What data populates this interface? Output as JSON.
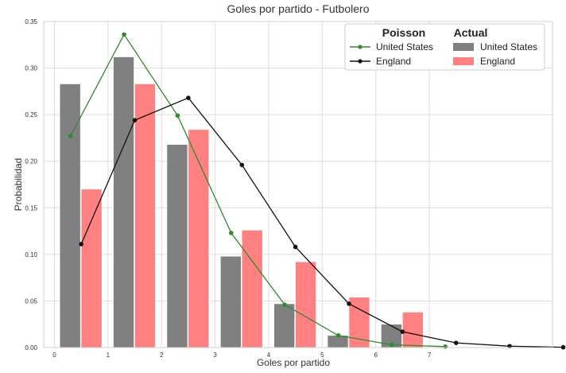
{
  "chart_data": {
    "type": "bar",
    "title": "Goles por partido - Futbolero",
    "xlabel": "Goles por partido",
    "ylabel": "Probabilidad",
    "x_ticks": [
      "0",
      "1",
      "2",
      "3",
      "4",
      "5",
      "6",
      "7"
    ],
    "y_ticks": [
      "0.00",
      "0.05",
      "0.10",
      "0.15",
      "0.20",
      "0.25",
      "0.30",
      "0.35"
    ],
    "xlim": [
      -0.2,
      9.3
    ],
    "ylim": [
      0,
      0.35
    ],
    "grid": true,
    "legend_position": "top-right",
    "bar_series": [
      {
        "name": "United States",
        "color": "#808080",
        "x": [
          0,
          1,
          2,
          3,
          4,
          5,
          6
        ],
        "values": [
          0.283,
          0.312,
          0.218,
          0.098,
          0.047,
          0.013,
          0.025
        ]
      },
      {
        "name": "England",
        "color": "#ff8080",
        "x": [
          0,
          1,
          2,
          3,
          4,
          5,
          6
        ],
        "values": [
          0.17,
          0.283,
          0.234,
          0.126,
          0.092,
          0.054,
          0.038
        ]
      }
    ],
    "line_series": [
      {
        "name": "United States",
        "color": "#2e8b2e",
        "x": [
          0,
          1,
          2,
          3,
          4,
          5,
          6,
          7
        ],
        "values": [
          0.227,
          0.336,
          0.249,
          0.123,
          0.046,
          0.013,
          0.003,
          0.001
        ]
      },
      {
        "name": "England",
        "color": "#111111",
        "x": [
          0,
          1,
          2,
          3,
          4,
          5,
          6,
          7,
          8,
          9
        ],
        "values": [
          0.111,
          0.244,
          0.268,
          0.196,
          0.108,
          0.047,
          0.017,
          0.005,
          0.0015,
          0.0003
        ]
      }
    ],
    "legend": {
      "poisson_title": "Poisson",
      "actual_title": "Actual"
    }
  }
}
